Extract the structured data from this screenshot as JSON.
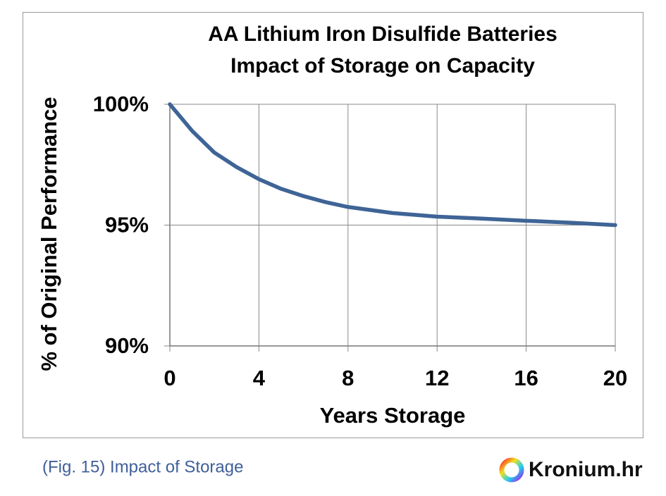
{
  "chart_data": {
    "type": "line",
    "title": "AA Lithium Iron Disulfide Batteries",
    "subtitle": "Impact of Storage on Capacity",
    "x_label": "Years Storage",
    "y_label": "% of Original Performance",
    "x": [
      0,
      1,
      2,
      3,
      4,
      5,
      6,
      7,
      8,
      10,
      12,
      14,
      16,
      18,
      20
    ],
    "series": [
      {
        "color": "#3f6496",
        "values": [
          100,
          98.9,
          98.0,
          97.4,
          96.9,
          96.5,
          96.2,
          95.95,
          95.75,
          95.5,
          95.35,
          95.27,
          95.18,
          95.1,
          95.0
        ]
      }
    ],
    "xlim": [
      0,
      20
    ],
    "xticks": [
      0,
      4,
      8,
      12,
      16,
      20
    ],
    "ylim": [
      90,
      100
    ],
    "yticks": [
      {
        "value": 90,
        "label": "90%"
      },
      {
        "value": 95,
        "label": "95%"
      },
      {
        "value": 100,
        "label": "100%"
      }
    ],
    "grid": true
  },
  "caption": "(Fig. 15) Impact of Storage",
  "logo": "Kronium.hr"
}
